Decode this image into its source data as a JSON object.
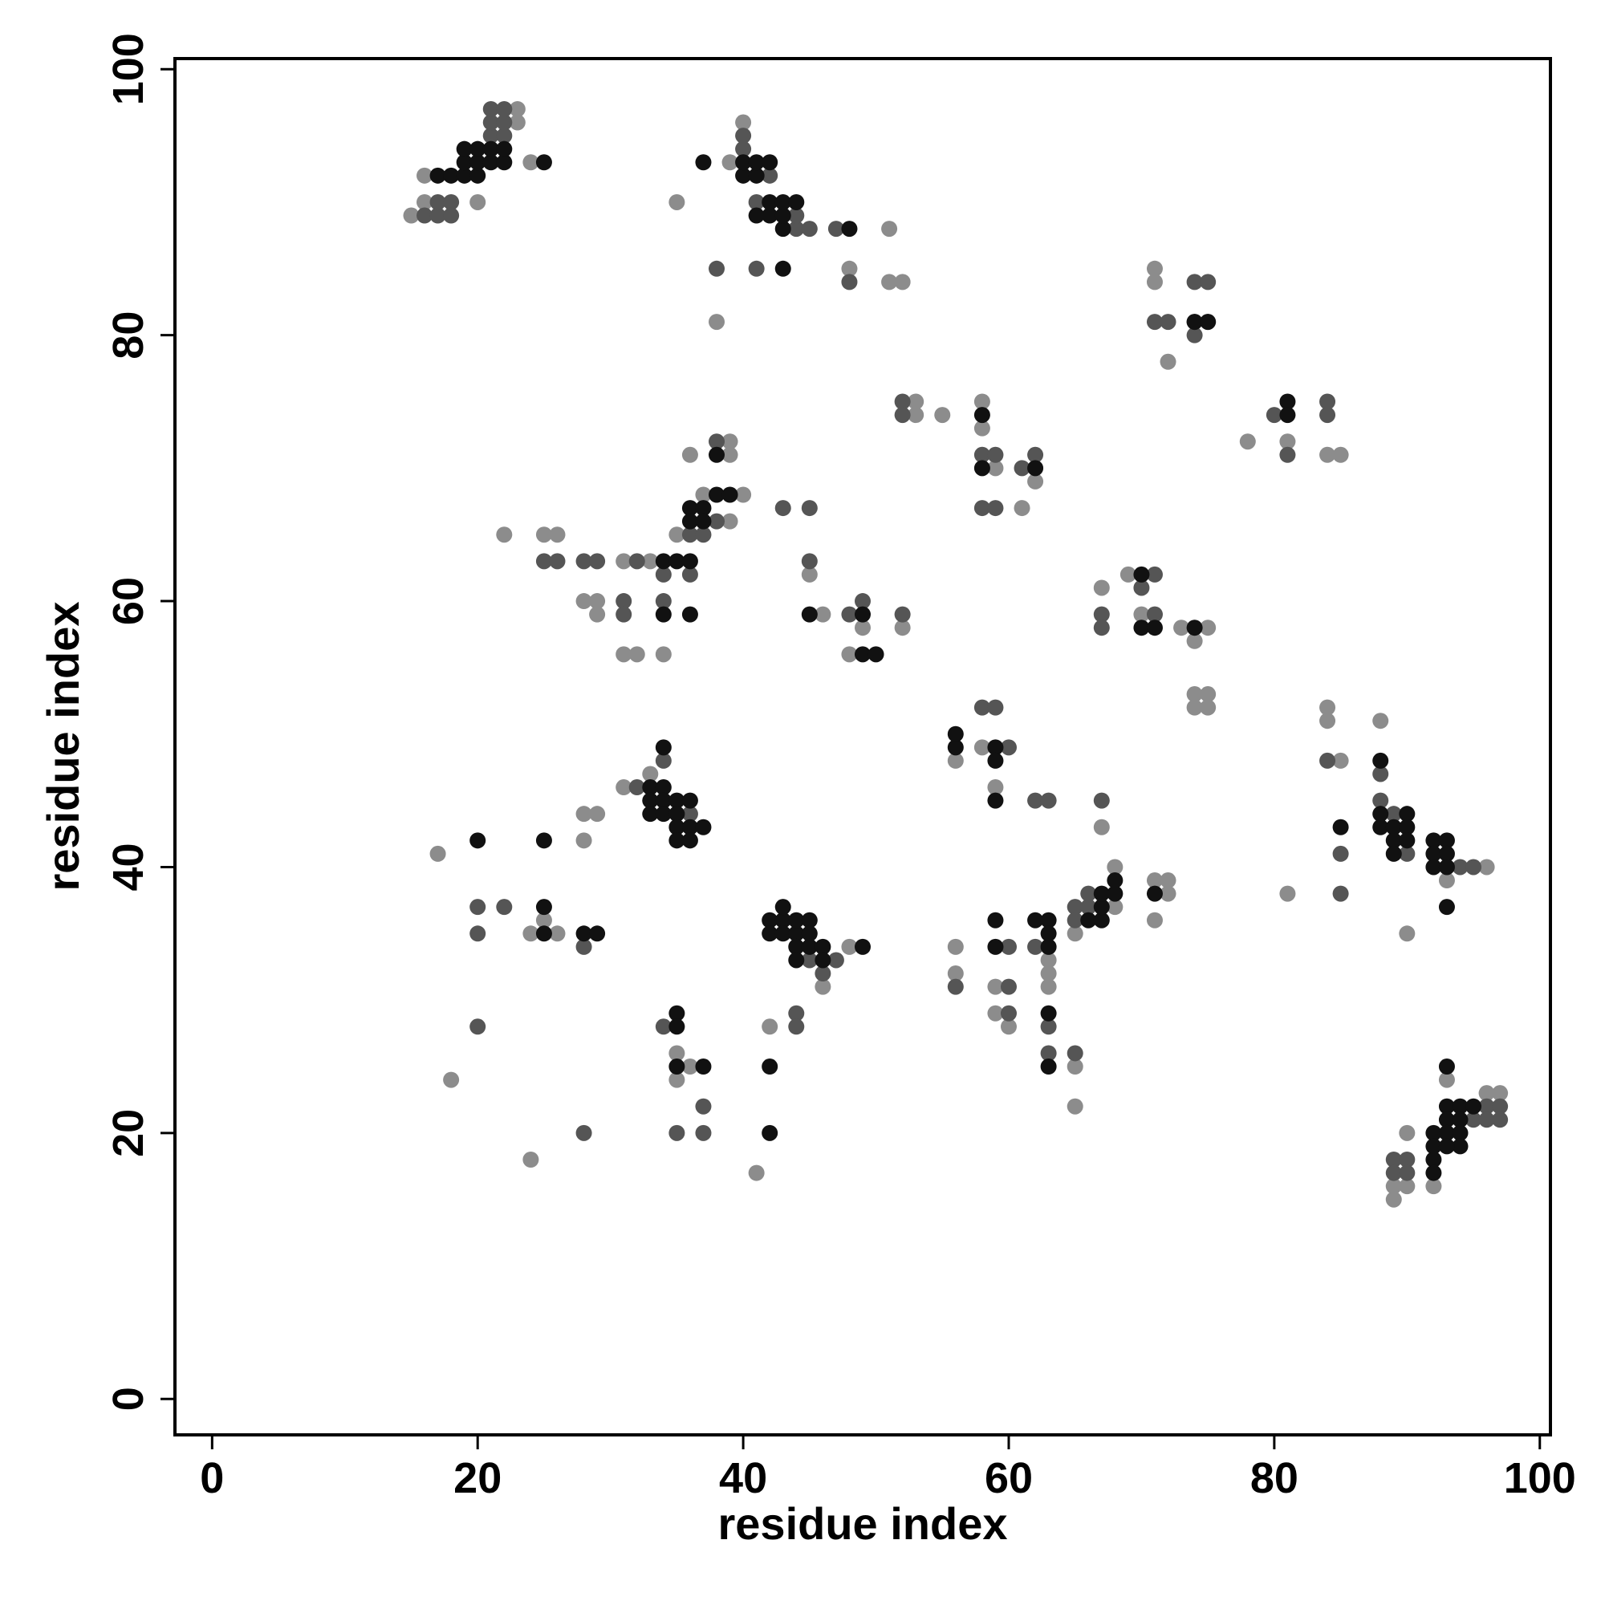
{
  "chart_data": {
    "type": "scatter",
    "x_label": "residue index",
    "y_label": "residue index",
    "xlim": [
      -2.8,
      100.8
    ],
    "ylim": [
      -2.7,
      100.8
    ],
    "xticks": [
      0,
      20,
      40,
      60,
      80,
      100
    ],
    "yticks": [
      0,
      20,
      40,
      60,
      80,
      100
    ],
    "series": [
      {
        "color": "#8c8c8c",
        "x": [
          15,
          16,
          16,
          20,
          23,
          23,
          24,
          40,
          39,
          35,
          38,
          48,
          51,
          51,
          52,
          71,
          71,
          72,
          53,
          53,
          55,
          58,
          58,
          59,
          61,
          62,
          78,
          81,
          84,
          85,
          39,
          39,
          36,
          37,
          39,
          40,
          35,
          22,
          25,
          26,
          31,
          33,
          28,
          29,
          29,
          31,
          32,
          34,
          45,
          46,
          48,
          49,
          52,
          67,
          69,
          70,
          73,
          74,
          75,
          74,
          75,
          74,
          75,
          31,
          33,
          28,
          29,
          28,
          56,
          58,
          59,
          84,
          84,
          85,
          88,
          93,
          96,
          81,
          90,
          17,
          24,
          25,
          26,
          18,
          24,
          46,
          48,
          42,
          35,
          35,
          36,
          41,
          56,
          56,
          59,
          59,
          60,
          63,
          63,
          63,
          65,
          68,
          68,
          65,
          65,
          71,
          72,
          72,
          71,
          67,
          89,
          89,
          90,
          90,
          92,
          93,
          96,
          97
        ],
        "values": [
          89,
          90,
          92,
          90,
          96,
          97,
          93,
          96,
          93,
          90,
          81,
          85,
          88,
          84,
          84,
          84,
          85,
          78,
          75,
          74,
          74,
          75,
          73,
          70,
          67,
          69,
          72,
          72,
          71,
          71,
          72,
          71,
          71,
          68,
          66,
          68,
          65,
          65,
          65,
          65,
          63,
          63,
          60,
          60,
          59,
          56,
          56,
          56,
          62,
          59,
          56,
          58,
          58,
          61,
          62,
          59,
          58,
          57,
          58,
          53,
          53,
          52,
          52,
          46,
          47,
          44,
          44,
          42,
          48,
          49,
          46,
          52,
          51,
          48,
          51,
          39,
          40,
          38,
          35,
          41,
          35,
          36,
          35,
          24,
          18,
          31,
          34,
          28,
          26,
          24,
          25,
          17,
          34,
          32,
          31,
          29,
          28,
          33,
          32,
          31,
          35,
          40,
          37,
          25,
          22,
          39,
          39,
          38,
          36,
          43,
          16,
          15,
          16,
          20,
          16,
          24,
          23,
          23
        ]
      },
      {
        "color": "#555555",
        "x": [
          16,
          17,
          17,
          18,
          21,
          21,
          21,
          22,
          22,
          22,
          18,
          40,
          40,
          41,
          42,
          44,
          45,
          47,
          38,
          41,
          48,
          44,
          71,
          72,
          74,
          74,
          75,
          74,
          75,
          52,
          52,
          58,
          59,
          58,
          59,
          61,
          62,
          80,
          81,
          84,
          84,
          38,
          36,
          37,
          38,
          36,
          34,
          25,
          26,
          28,
          29,
          31,
          34,
          31,
          32,
          45,
          48,
          49,
          52,
          43,
          45,
          67,
          67,
          71,
          70,
          71,
          32,
          34,
          36,
          58,
          59,
          60,
          84,
          88,
          88,
          89,
          90,
          94,
          95,
          85,
          85,
          20,
          20,
          22,
          28,
          20,
          46,
          45,
          47,
          60,
          62,
          65,
          66,
          66,
          65,
          63,
          63,
          56,
          60,
          60,
          65,
          62,
          63,
          67,
          34,
          37,
          35,
          37,
          44,
          44,
          28,
          89,
          89,
          90,
          90,
          95,
          96,
          96,
          97,
          97
        ],
        "values": [
          89,
          89,
          90,
          90,
          95,
          96,
          97,
          95,
          96,
          97,
          89,
          94,
          95,
          90,
          92,
          88,
          88,
          88,
          85,
          85,
          84,
          89,
          81,
          81,
          80,
          81,
          81,
          84,
          84,
          75,
          74,
          71,
          71,
          67,
          67,
          70,
          71,
          74,
          71,
          75,
          74,
          72,
          65,
          65,
          66,
          62,
          62,
          63,
          63,
          63,
          63,
          60,
          60,
          59,
          63,
          63,
          59,
          60,
          59,
          67,
          67,
          59,
          58,
          62,
          61,
          59,
          46,
          48,
          44,
          52,
          52,
          49,
          48,
          47,
          45,
          44,
          41,
          40,
          40,
          41,
          38,
          37,
          35,
          37,
          34,
          28,
          32,
          33,
          33,
          34,
          34,
          37,
          37,
          38,
          36,
          28,
          26,
          31,
          31,
          29,
          26,
          45,
          45,
          45,
          28,
          22,
          20,
          20,
          29,
          28,
          20,
          18,
          17,
          18,
          17,
          21,
          22,
          21,
          22,
          21
        ]
      },
      {
        "color": "#111111",
        "x": [
          17,
          18,
          19,
          19,
          19,
          20,
          20,
          20,
          21,
          21,
          22,
          22,
          25,
          37,
          40,
          40,
          41,
          41,
          42,
          41,
          42,
          42,
          43,
          43,
          43,
          44,
          43,
          48,
          74,
          75,
          58,
          58,
          62,
          81,
          81,
          38,
          36,
          37,
          38,
          39,
          36,
          37,
          34,
          35,
          36,
          34,
          36,
          45,
          49,
          49,
          50,
          70,
          70,
          71,
          74,
          34,
          33,
          34,
          33,
          34,
          35,
          36,
          33,
          34,
          35,
          35,
          36,
          37,
          35,
          36,
          56,
          59,
          59,
          59,
          56,
          88,
          88,
          88,
          89,
          89,
          89,
          90,
          90,
          90,
          92,
          92,
          92,
          93,
          93,
          93,
          93,
          85,
          20,
          25,
          25,
          25,
          28,
          29,
          42,
          43,
          42,
          43,
          44,
          44,
          45,
          45,
          44,
          45,
          46,
          44,
          46,
          43,
          49,
          35,
          35,
          35,
          37,
          42,
          42,
          59,
          59,
          62,
          63,
          63,
          63,
          66,
          67,
          67,
          67,
          68,
          68,
          71,
          63,
          63,
          93,
          92,
          92,
          92,
          92,
          93,
          93,
          93,
          94,
          94,
          94,
          94,
          95,
          93
        ],
        "values": [
          92,
          92,
          92,
          93,
          94,
          92,
          93,
          94,
          93,
          94,
          93,
          94,
          93,
          93,
          92,
          93,
          92,
          93,
          93,
          89,
          89,
          90,
          88,
          89,
          90,
          90,
          85,
          88,
          81,
          81,
          74,
          70,
          70,
          75,
          74,
          71,
          67,
          67,
          68,
          68,
          66,
          66,
          63,
          63,
          63,
          59,
          59,
          59,
          59,
          56,
          56,
          62,
          58,
          58,
          58,
          49,
          46,
          46,
          45,
          45,
          45,
          45,
          44,
          44,
          44,
          43,
          43,
          43,
          42,
          42,
          49,
          49,
          48,
          45,
          50,
          48,
          44,
          43,
          43,
          42,
          41,
          44,
          43,
          42,
          42,
          41,
          40,
          42,
          41,
          40,
          37,
          43,
          42,
          42,
          37,
          35,
          35,
          35,
          36,
          36,
          35,
          35,
          35,
          36,
          36,
          35,
          34,
          34,
          34,
          33,
          33,
          37,
          34,
          29,
          28,
          25,
          25,
          25,
          20,
          36,
          34,
          36,
          36,
          35,
          34,
          36,
          36,
          37,
          38,
          38,
          39,
          38,
          29,
          25,
          25,
          20,
          19,
          18,
          17,
          22,
          21,
          20,
          22,
          21,
          20,
          19,
          22,
          19
        ]
      }
    ]
  }
}
